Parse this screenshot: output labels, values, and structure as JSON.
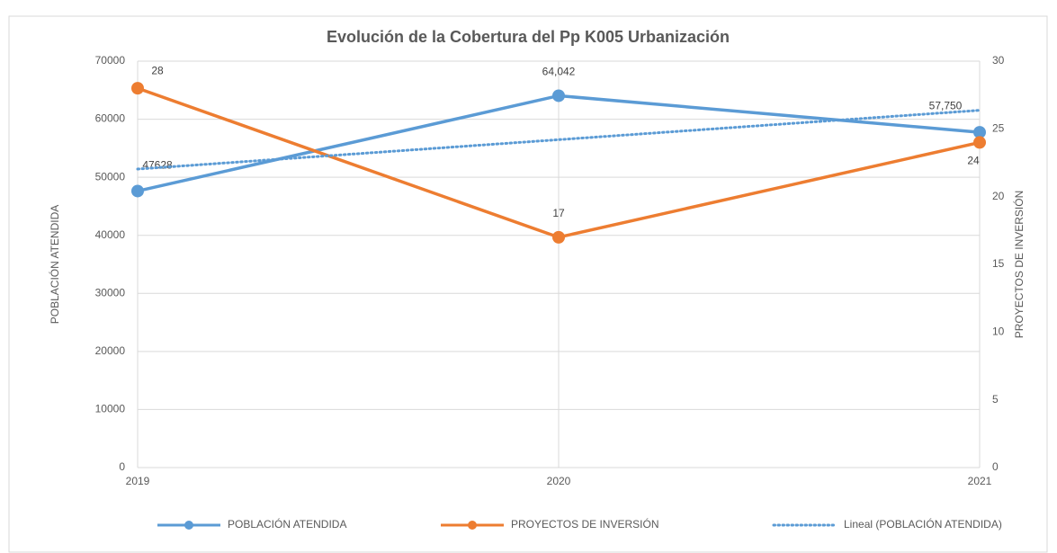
{
  "chart_data": {
    "type": "line",
    "title": "Evolución de la Cobertura del Pp K005 Urbanización",
    "categories": [
      "2019",
      "2020",
      "2021"
    ],
    "ylabel": "POBLACIÓN ATENDIDA",
    "y2label": "PROYECTOS DE INVERSIÓN",
    "ylim": [
      0,
      70000
    ],
    "yticks": [
      0,
      10000,
      20000,
      30000,
      40000,
      50000,
      60000,
      70000
    ],
    "y2lim": [
      0,
      30
    ],
    "y2ticks": [
      0,
      5,
      10,
      15,
      20,
      25,
      30
    ],
    "grid": true,
    "legend": "bottom",
    "series": [
      {
        "name": "POBLACIÓN ATENDIDA",
        "color": "#5b9bd5",
        "values": [
          47628,
          64042,
          57750
        ],
        "value_labels": [
          "47628",
          "64,042",
          "57,750"
        ],
        "markers": true
      },
      {
        "name": "PROYECTOS DE INVERSIÓN",
        "color": "#ed7d31",
        "values": [
          28,
          17,
          24
        ],
        "axis": "y2",
        "markers": true
      },
      {
        "name": "Lineal (POBLACIÓN ATENDIDA)",
        "color": "#5b9bd5",
        "values": [
          51412,
          56473,
          61534
        ],
        "dotted": true
      }
    ]
  }
}
